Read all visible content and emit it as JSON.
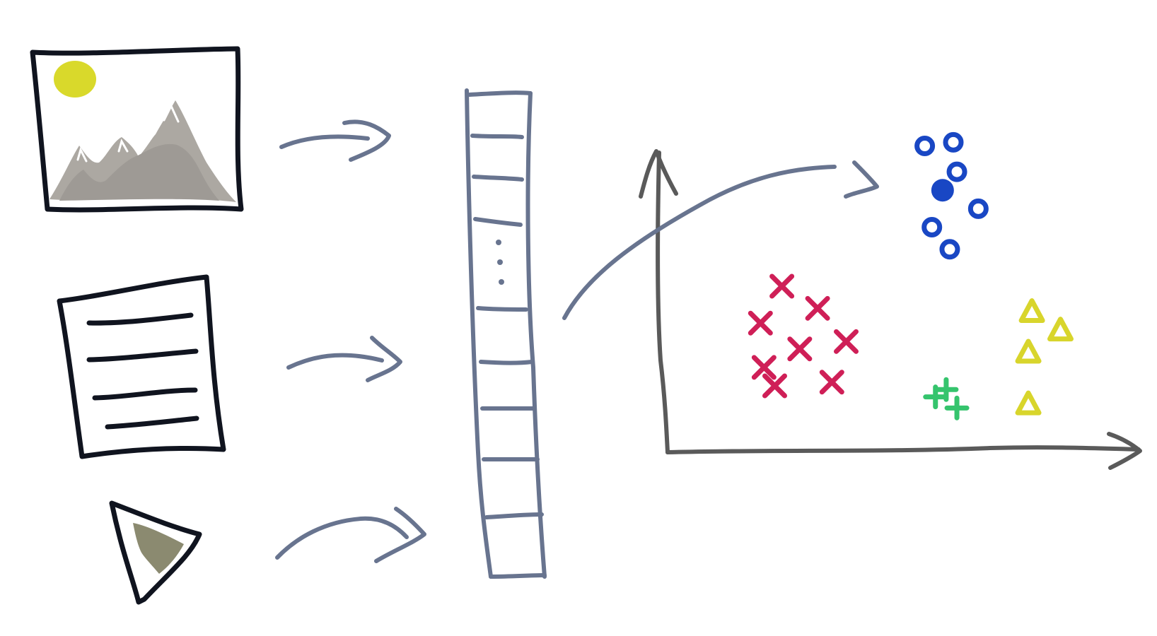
{
  "colors": {
    "outline": "#10141f",
    "connector": "#68748f",
    "axis": "#5a5a5a",
    "sun": "#d9d92b",
    "mountain": "#aca8a2",
    "video_content": "#8b8a70",
    "blue_cluster": "#1947c4",
    "red_cluster": "#cf1f57",
    "green_cluster": "#35c46d",
    "yellow_cluster": "#d8d52c"
  },
  "icons": {
    "image_input": "image-icon",
    "document_input": "document-icon",
    "video_input": "play-icon",
    "embedding_vector": "vector-icon",
    "scatter_plot": "scatter-plot-icon"
  },
  "vector": {
    "visible_cells_top": 3,
    "visible_cells_bottom": 6,
    "ellipsis_dots": 3
  },
  "chart_data": {
    "type": "scatter",
    "title": "",
    "xlabel": "",
    "ylabel": "",
    "grid": false,
    "series": [
      {
        "marker": "circle",
        "color": "#1947c4",
        "points": [
          [
            7.2,
            8.3
          ],
          [
            8.0,
            8.4
          ],
          [
            8.1,
            7.6
          ],
          [
            8.7,
            6.6
          ],
          [
            7.4,
            6.1
          ],
          [
            7.9,
            5.5
          ]
        ]
      },
      {
        "marker": "filled-circle",
        "color": "#1947c4",
        "points": [
          [
            7.7,
            7.1
          ]
        ]
      },
      {
        "marker": "x",
        "color": "#cf1f57",
        "points": [
          [
            3.2,
            4.5
          ],
          [
            4.2,
            3.9
          ],
          [
            2.6,
            3.5
          ],
          [
            3.7,
            2.8
          ],
          [
            5.0,
            3.0
          ],
          [
            2.7,
            2.3
          ],
          [
            3.0,
            1.8
          ],
          [
            4.6,
            1.9
          ]
        ]
      },
      {
        "marker": "plus",
        "color": "#35c46d",
        "points": [
          [
            7.5,
            1.5
          ],
          [
            7.8,
            1.7
          ],
          [
            8.1,
            1.2
          ]
        ]
      },
      {
        "marker": "triangle",
        "color": "#d8d52c",
        "points": [
          [
            10.2,
            3.8
          ],
          [
            11.0,
            3.3
          ],
          [
            10.1,
            2.7
          ],
          [
            10.1,
            1.3
          ]
        ]
      }
    ]
  }
}
